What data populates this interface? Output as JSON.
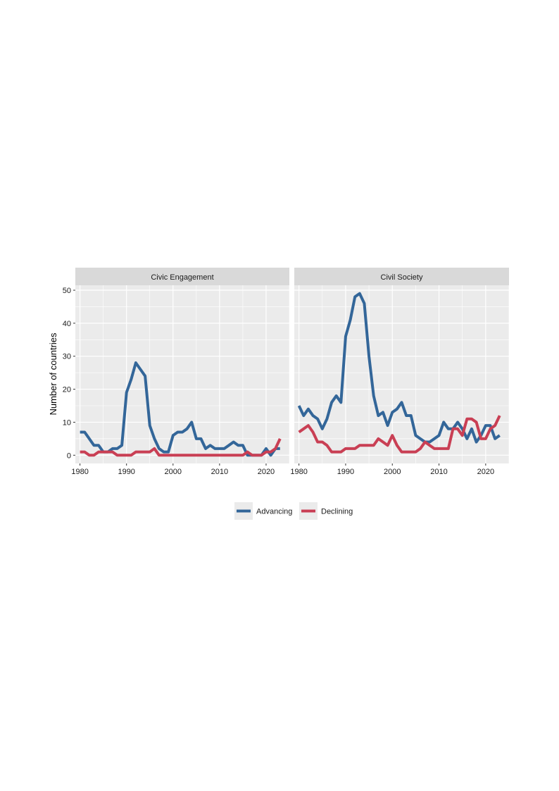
{
  "chart_data": {
    "type": "line",
    "ylabel": "Number of countries",
    "xlabel": "",
    "x_ticks": [
      1980,
      1990,
      2000,
      2010,
      2020
    ],
    "y_ticks": [
      0,
      10,
      20,
      30,
      40,
      50
    ],
    "xlim": [
      1979,
      2025
    ],
    "ylim": [
      -2.5,
      51.5
    ],
    "grid": true,
    "legend_position": "bottom",
    "colors": {
      "Advancing": "#336699",
      "Declining": "#c93f54"
    },
    "x": [
      1980,
      1981,
      1982,
      1983,
      1984,
      1985,
      1986,
      1987,
      1988,
      1989,
      1990,
      1991,
      1992,
      1993,
      1994,
      1995,
      1996,
      1997,
      1998,
      1999,
      2000,
      2001,
      2002,
      2003,
      2004,
      2005,
      2006,
      2007,
      2008,
      2009,
      2010,
      2011,
      2012,
      2013,
      2014,
      2015,
      2016,
      2017,
      2018,
      2019,
      2020,
      2021,
      2022,
      2023
    ],
    "panels": [
      {
        "title": "Civic Engagement",
        "series": [
          {
            "name": "Advancing",
            "values": [
              7,
              7,
              5,
              3,
              3,
              1,
              1,
              2,
              2,
              3,
              19,
              23,
              28,
              26,
              24,
              9,
              5,
              2,
              1,
              1,
              6,
              7,
              7,
              8,
              10,
              5,
              5,
              2,
              3,
              2,
              2,
              2,
              3,
              4,
              3,
              3,
              0,
              0,
              0,
              0,
              2,
              0,
              2,
              2
            ]
          },
          {
            "name": "Declining",
            "values": [
              1,
              1,
              0,
              0,
              1,
              1,
              1,
              1,
              0,
              0,
              0,
              0,
              1,
              1,
              1,
              1,
              2,
              0,
              0,
              0,
              0,
              0,
              0,
              0,
              0,
              0,
              0,
              0,
              0,
              0,
              0,
              0,
              0,
              0,
              0,
              0,
              1,
              0,
              0,
              0,
              1,
              1,
              2,
              5
            ]
          }
        ]
      },
      {
        "title": "Civil Society",
        "series": [
          {
            "name": "Advancing",
            "values": [
              15,
              12,
              14,
              12,
              11,
              8,
              11,
              16,
              18,
              16,
              36,
              41,
              48,
              49,
              46,
              30,
              18,
              12,
              13,
              9,
              13,
              14,
              16,
              12,
              12,
              6,
              5,
              4,
              4,
              5,
              6,
              10,
              8,
              8,
              10,
              8,
              5,
              8,
              4,
              6,
              9,
              9,
              5,
              6
            ]
          },
          {
            "name": "Declining",
            "values": [
              7,
              8,
              9,
              7,
              4,
              4,
              3,
              1,
              1,
              1,
              2,
              2,
              2,
              3,
              3,
              3,
              3,
              5,
              4,
              3,
              6,
              3,
              1,
              1,
              1,
              1,
              2,
              4,
              3,
              2,
              2,
              2,
              2,
              8,
              8,
              6,
              11,
              11,
              10,
              5,
              5,
              8,
              9,
              12
            ]
          }
        ]
      }
    ],
    "legend": [
      "Advancing",
      "Declining"
    ]
  }
}
